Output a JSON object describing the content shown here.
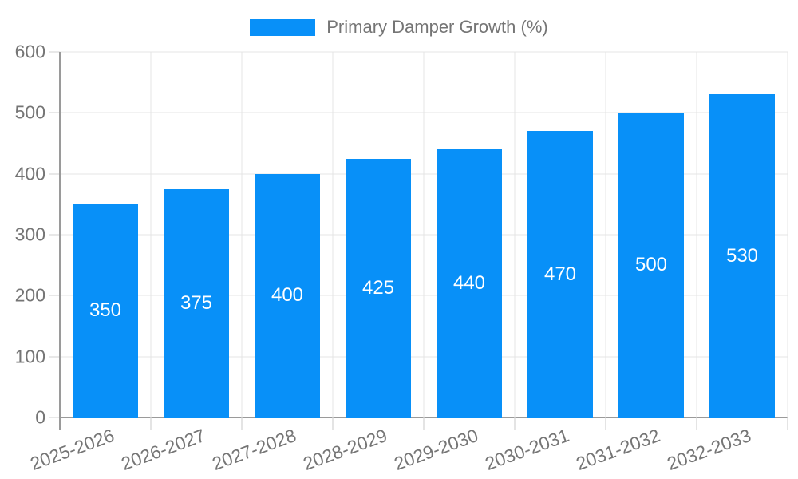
{
  "chart_data": {
    "type": "bar",
    "legend_label": "Primary Damper Growth (%)",
    "legend_position": "top",
    "categories": [
      "2025-2026",
      "2026-2027",
      "2027-2028",
      "2028-2029",
      "2029-2030",
      "2030-2031",
      "2031-2032",
      "2032-2033"
    ],
    "values": [
      350,
      375,
      400,
      425,
      440,
      470,
      500,
      530
    ],
    "xlabel": "",
    "ylabel": "",
    "ylim": [
      0,
      600
    ],
    "ytick_step": 100,
    "ytick_labels": [
      "0",
      "100",
      "200",
      "300",
      "400",
      "500",
      "600"
    ],
    "grid": true,
    "x_label_rotation_deg": -20,
    "colors": {
      "bar": "#0890f8",
      "value_label": "#ffffff",
      "axis": "#9a9a9a",
      "gridline": "#e4e4e4",
      "tick": "#c9c9c9",
      "text": "#757575"
    }
  }
}
